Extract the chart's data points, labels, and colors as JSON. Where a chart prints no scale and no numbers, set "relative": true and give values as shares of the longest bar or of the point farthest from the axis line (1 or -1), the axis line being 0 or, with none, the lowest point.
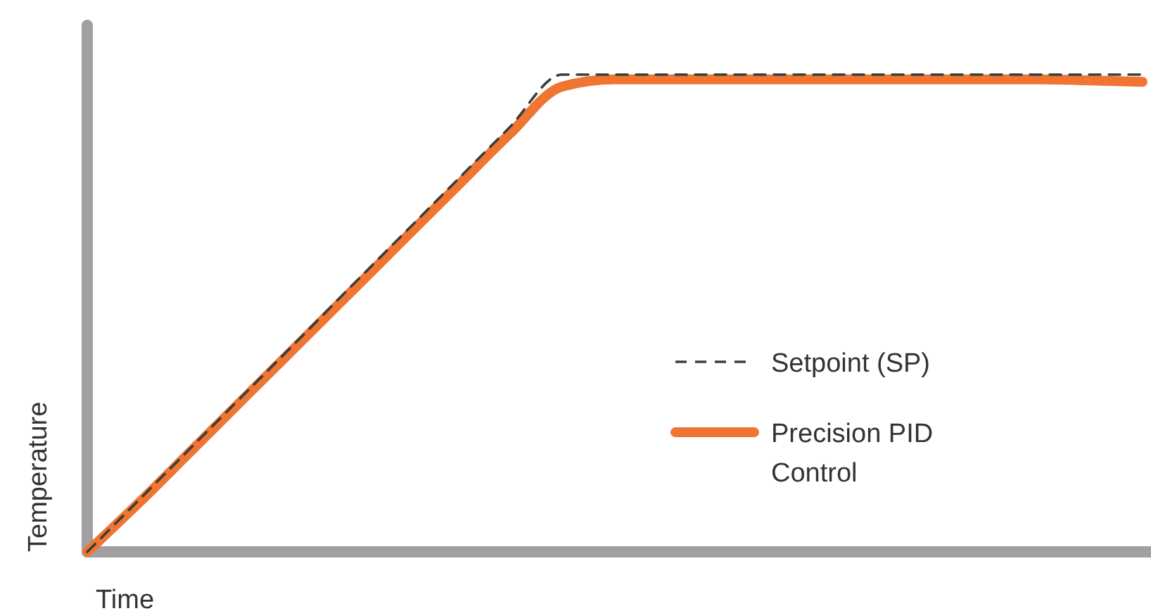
{
  "chart_data": {
    "type": "line",
    "relative": true,
    "xlabel": "Time",
    "ylabel": "Temperature",
    "legend": "right",
    "categories": [
      null,
      null,
      null,
      null,
      null,
      null,
      null,
      null,
      null,
      null,
      null,
      null,
      null,
      null,
      null,
      null,
      null,
      null,
      null,
      null,
      null
    ],
    "series": [
      {
        "name": "Setpoint (SP)",
        "color": "#3a3f3a",
        "line_style": "dashed",
        "values": [
          0,
          0.111,
          0.222,
          0.333,
          0.444,
          0.556,
          0.667,
          0.778,
          0.889,
          1,
          1,
          1,
          1,
          1,
          1,
          1,
          1,
          1,
          1,
          1,
          1
        ]
      },
      {
        "name": "Precision PID Control",
        "color": "#f07432",
        "line_style": "solid",
        "values": [
          0,
          0.105,
          0.215,
          0.325,
          0.435,
          0.545,
          0.655,
          0.765,
          0.875,
          0.975,
          0.99,
          0.99,
          0.99,
          0.99,
          0.99,
          0.99,
          0.99,
          0.99,
          0.99,
          0.988,
          0.985
        ]
      }
    ]
  }
}
